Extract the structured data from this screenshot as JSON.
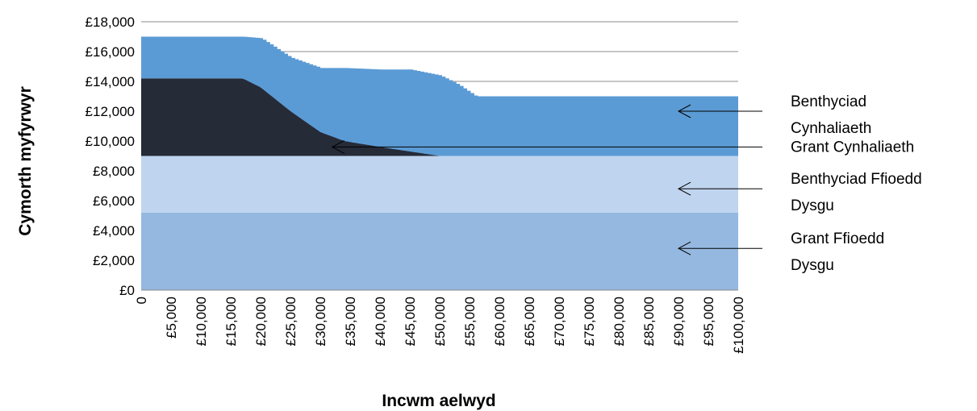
{
  "chart_data": {
    "type": "area",
    "stacked": true,
    "title": "",
    "xlabel": "Incwm aelwyd",
    "ylabel": "Cymorth myfyrwyr",
    "xlim": [
      0,
      100000
    ],
    "ylim": [
      0,
      18000
    ],
    "x_ticks": [
      "0",
      "£5,000",
      "£10,000",
      "£15,000",
      "£20,000",
      "£25,000",
      "£30,000",
      "£35,000",
      "£40,000",
      "£45,000",
      "£50,000",
      "£55,000",
      "£60,000",
      "£65,000",
      "£70,000",
      "£75,000",
      "£80,000",
      "£85,000",
      "£90,000",
      "£95,000",
      "£100,000"
    ],
    "y_ticks": [
      "£0",
      "£2,000",
      "£4,000",
      "£6,000",
      "£8,000",
      "£10,000",
      "£12,000",
      "£14,000",
      "£16,000",
      "£18,000"
    ],
    "grid": "horizontal",
    "series": [
      {
        "label": "Grant Ffioedd Dysgu",
        "color": "#95b8e0",
        "x": [
          0,
          100000
        ],
        "values": [
          5200,
          5200
        ]
      },
      {
        "label": "Benthyciad Ffioedd Dysgu",
        "color": "#bfd4ee",
        "x": [
          0,
          100000
        ],
        "values": [
          3800,
          3800
        ]
      },
      {
        "label": "Grant Cynhaliaeth",
        "color": "#262b38",
        "x": [
          0,
          17000,
          20000,
          25000,
          30000,
          34000,
          40000,
          45000,
          50000,
          100000
        ],
        "values": [
          5200,
          5200,
          4600,
          3000,
          1600,
          1000,
          600,
          300,
          0,
          0
        ]
      },
      {
        "label": "Benthyciad Cynhaliaeth",
        "color": "#5b9bd5",
        "x": [
          0,
          17000,
          20000,
          25000,
          30000,
          34000,
          40000,
          45000,
          50000,
          53000,
          56000,
          100000
        ],
        "values": [
          2800,
          2800,
          3300,
          3600,
          4300,
          4900,
          5200,
          5500,
          5400,
          4800,
          4000,
          4000
        ]
      }
    ],
    "annotations": [
      {
        "text": "Benthyciad Cynhaliaeth",
        "x": 90000,
        "y": 12000
      },
      {
        "text": "Grant Cynhaliaeth",
        "x": 32000,
        "y": 9600
      },
      {
        "text": "Benthyciad Ffioedd Dysgu",
        "x": 90000,
        "y": 6800
      },
      {
        "text": "Grant Ffioedd Dysgu",
        "x": 90000,
        "y": 2800
      }
    ]
  }
}
